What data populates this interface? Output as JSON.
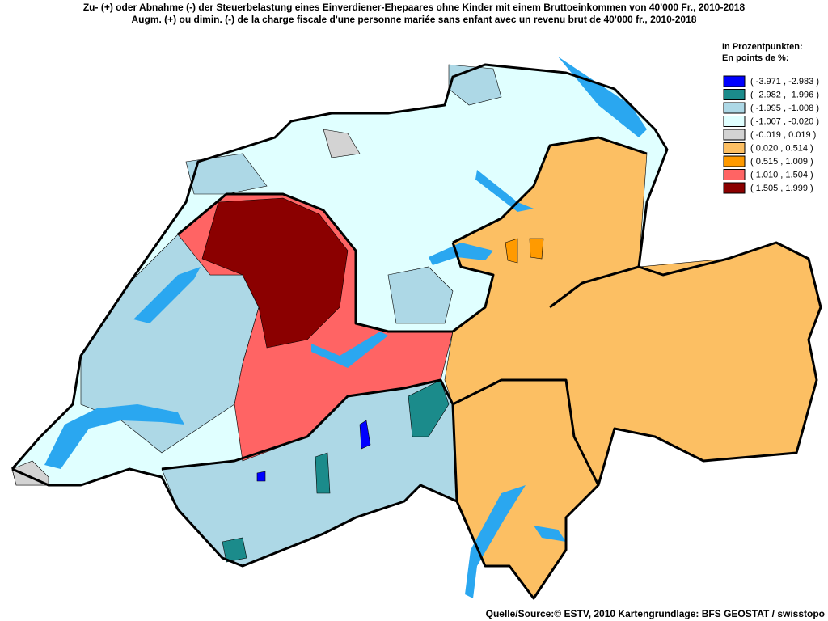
{
  "title": [
    "Zu- (+) oder Abnahme (-) der Steuerbelastung eines Einverdiener-Ehepaares ohne Kinder mit einem Bruttoeinkommen von 40'000 Fr., 2010-2018",
    "Augm. (+) ou dimin. (-) de la charge fiscale d'une personne mariée sans enfant avec un revenu brut de 40'000 fr., 2010-2018"
  ],
  "legend": {
    "title": [
      "In Prozentpunkten:",
      "En points de %:"
    ],
    "items": [
      {
        "label": "( -3.971 , -2.983 )",
        "color": "#0000ff"
      },
      {
        "label": "( -2.982 , -1.996 )",
        "color": "#1b8b8b"
      },
      {
        "label": "( -1.995 , -1.008 )",
        "color": "#add8e6"
      },
      {
        "label": "( -1.007 , -0.020 )",
        "color": "#e0ffff"
      },
      {
        "label": "( -0.019 , 0.019 )",
        "color": "#d3d3d3"
      },
      {
        "label": "( 0.020 , 0.514 )",
        "color": "#fcbf63"
      },
      {
        "label": "( 0.515 , 1.009 )",
        "color": "#ff9a00"
      },
      {
        "label": "( 1.010 , 1.504 )",
        "color": "#ff6464"
      },
      {
        "label": "( 1.505 , 1.999 )",
        "color": "#8b0000"
      }
    ]
  },
  "source": "Quelle/Source:© ESTV, 2010 Kartengrundlage: BFS GEOSTAT / swisstopo"
}
